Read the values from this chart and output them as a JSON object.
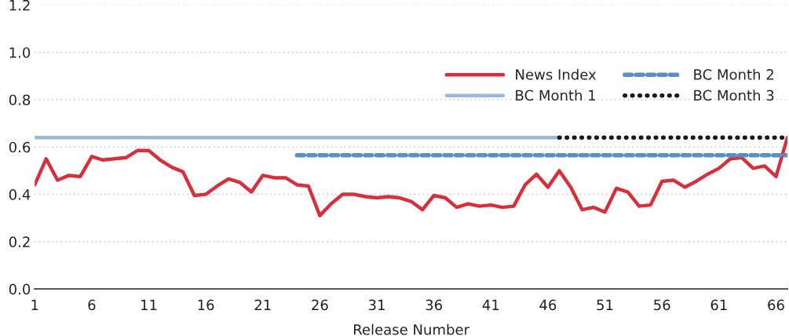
{
  "chart_data": {
    "type": "line",
    "xlabel": "Release Number",
    "x": [
      1,
      2,
      3,
      4,
      5,
      6,
      7,
      8,
      9,
      10,
      11,
      12,
      13,
      14,
      15,
      16,
      17,
      18,
      19,
      20,
      21,
      22,
      23,
      24,
      25,
      26,
      27,
      28,
      29,
      30,
      31,
      32,
      33,
      34,
      35,
      36,
      37,
      38,
      39,
      40,
      41,
      42,
      43,
      44,
      45,
      46,
      47,
      48,
      49,
      50,
      51,
      52,
      53,
      54,
      55,
      56,
      57,
      58,
      59,
      60,
      61,
      62,
      63,
      64,
      65,
      66,
      67
    ],
    "series": [
      {
        "name": "News Index",
        "color": "#d7303c",
        "line_style": "solid",
        "values": [
          0.44,
          0.55,
          0.46,
          0.48,
          0.475,
          0.56,
          0.545,
          0.55,
          0.555,
          0.585,
          0.585,
          0.545,
          0.515,
          0.495,
          0.395,
          0.4,
          0.435,
          0.465,
          0.45,
          0.41,
          0.48,
          0.47,
          0.47,
          0.44,
          0.435,
          0.31,
          0.36,
          0.4,
          0.4,
          0.39,
          0.385,
          0.39,
          0.385,
          0.37,
          0.335,
          0.395,
          0.385,
          0.345,
          0.36,
          0.35,
          0.355,
          0.345,
          0.35,
          0.44,
          0.485,
          0.43,
          0.5,
          0.43,
          0.335,
          0.345,
          0.325,
          0.425,
          0.41,
          0.35,
          0.355,
          0.455,
          0.46,
          0.43,
          0.455,
          0.485,
          0.51,
          0.55,
          0.555,
          0.51,
          0.52,
          0.475,
          0.64
        ]
      },
      {
        "name": "BC Month 1",
        "color": "#9db9d9",
        "line_style": "solid",
        "x": [
          1,
          47
        ],
        "values": [
          0.64,
          0.64
        ]
      },
      {
        "name": "BC Month 2",
        "color": "#5b8fc0",
        "line_style": "dashed",
        "x": [
          24,
          67
        ],
        "values": [
          0.565,
          0.565
        ]
      },
      {
        "name": "BC Month 3",
        "color": "#1a1a1a",
        "line_style": "dotted",
        "x": [
          47,
          67
        ],
        "values": [
          0.64,
          0.64
        ]
      }
    ],
    "xlim": [
      1,
      67
    ],
    "xticks": [
      1,
      6,
      11,
      16,
      21,
      26,
      31,
      36,
      41,
      46,
      51,
      56,
      61,
      66
    ],
    "ylim": [
      0,
      1.2
    ],
    "yticks": [
      {
        "value": 0,
        "label": "0.0"
      },
      0.2,
      0.4,
      0.6,
      0.8,
      {
        "value": 1,
        "label": "1.0"
      },
      1.2
    ],
    "grid": "y",
    "legend": "top right",
    "marker": "none"
  }
}
